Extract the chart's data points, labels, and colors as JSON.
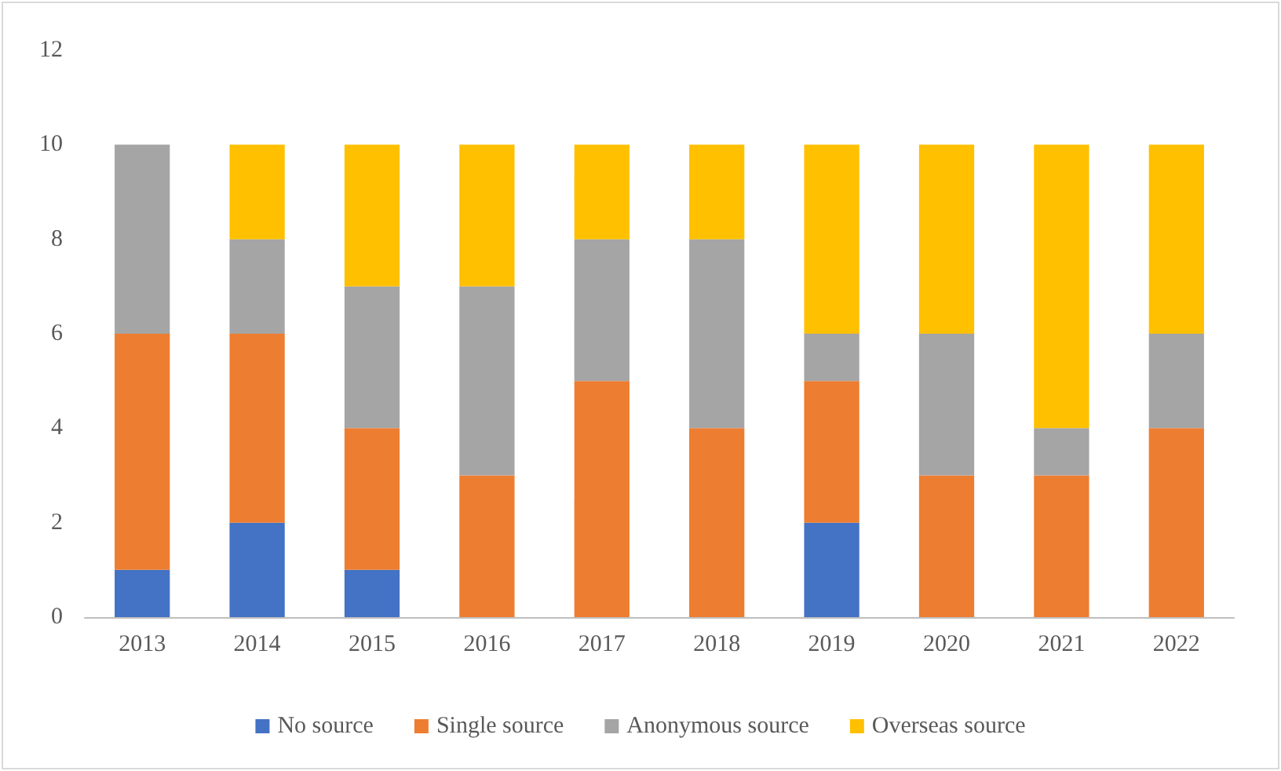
{
  "chart_data": {
    "type": "bar",
    "stacked": true,
    "categories": [
      "2013",
      "2014",
      "2015",
      "2016",
      "2017",
      "2018",
      "2019",
      "2020",
      "2021",
      "2022"
    ],
    "series": [
      {
        "name": "No source",
        "color": "#4472c4",
        "values": [
          1,
          2,
          1,
          0,
          0,
          0,
          2,
          0,
          0,
          0
        ]
      },
      {
        "name": "Single source",
        "color": "#ed7d31",
        "values": [
          5,
          4,
          3,
          3,
          5,
          4,
          3,
          3,
          3,
          4
        ]
      },
      {
        "name": "Anonymous source",
        "color": "#a5a5a5",
        "values": [
          4,
          2,
          3,
          4,
          3,
          4,
          1,
          3,
          1,
          2
        ]
      },
      {
        "name": "Overseas source",
        "color": "#ffc000",
        "values": [
          0,
          2,
          3,
          3,
          2,
          2,
          4,
          4,
          6,
          4
        ]
      }
    ],
    "ylim": [
      0,
      12
    ],
    "yticks": [
      0,
      2,
      4,
      6,
      8,
      10,
      12
    ],
    "grid": false,
    "legend": "bottom"
  }
}
